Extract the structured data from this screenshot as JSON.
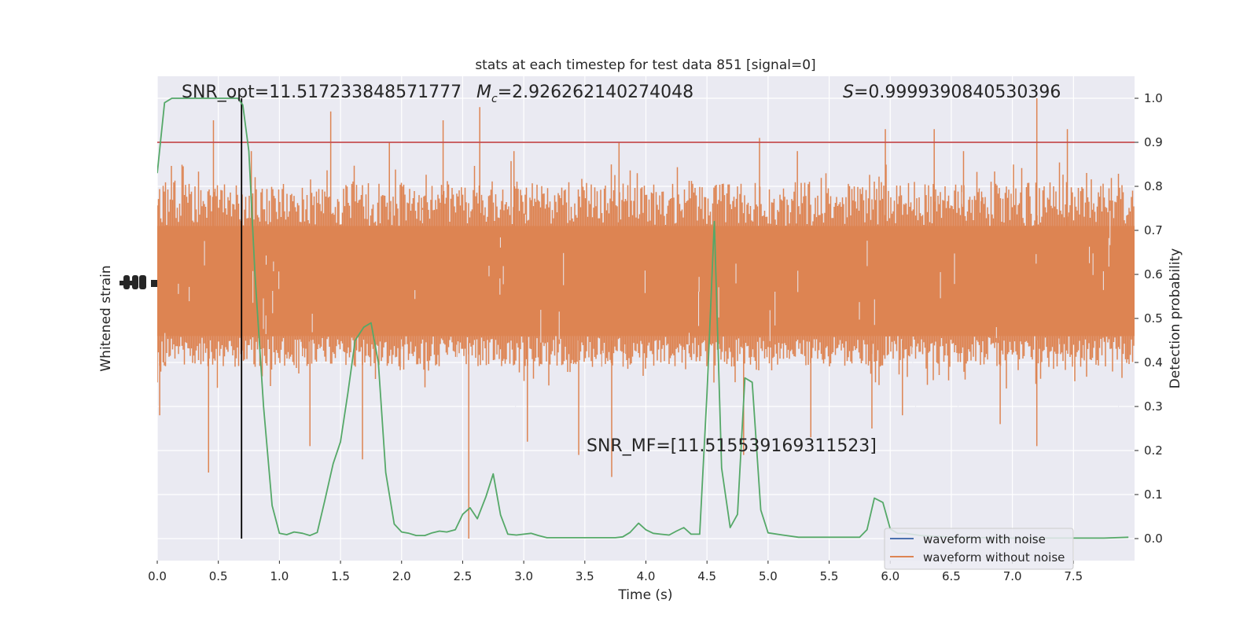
{
  "chart_data": {
    "type": "line",
    "title": "stats at each timestep for test data 851 [signal=0]",
    "xlabel": "Time (s)",
    "ylabel_left": "Whitened strain",
    "ylabel_right": "Detection probability",
    "xlim": [
      0,
      8
    ],
    "ylim_right": [
      -0.05,
      1.05
    ],
    "grid": true,
    "x_ticks": [
      "0.0",
      "0.5",
      "1.0",
      "1.5",
      "2.0",
      "2.5",
      "3.0",
      "3.5",
      "4.0",
      "4.5",
      "5.0",
      "5.5",
      "6.0",
      "6.5",
      "7.0",
      "7.5"
    ],
    "right_ticks": [
      "0.0",
      "0.1",
      "0.2",
      "0.3",
      "0.4",
      "0.5",
      "0.6",
      "0.7",
      "0.8",
      "0.9",
      "1.0"
    ],
    "annotations": {
      "snr_opt": "SNR_opt=11.517233848571777",
      "mc_symbol": "M",
      "mc_subscript": "c",
      "mc_value": "=2.926262140274048",
      "s_symbol": "S",
      "s_value": "=0.9999390840530396",
      "snr_mf": "SNR_MF=[11.515539169311523]"
    },
    "threshold": 0.9,
    "marker_time": 0.69,
    "noise_spikes": {
      "up": [
        [
          0.46,
          0.95
        ],
        [
          1.42,
          0.97
        ],
        [
          2.34,
          0.95
        ],
        [
          2.64,
          0.98
        ],
        [
          5.96,
          0.93
        ],
        [
          6.36,
          0.93
        ],
        [
          7.2,
          1.0
        ],
        [
          7.45,
          0.93
        ],
        [
          1.9,
          0.9
        ],
        [
          4.93,
          0.91
        ],
        [
          3.78,
          0.9
        ],
        [
          0.77,
          0.88
        ],
        [
          2.92,
          0.88
        ],
        [
          5.24,
          0.88
        ],
        [
          6.6,
          0.88
        ]
      ],
      "down": [
        [
          0.42,
          0.15
        ],
        [
          1.25,
          0.21
        ],
        [
          1.68,
          0.18
        ],
        [
          2.55,
          0.0
        ],
        [
          3.45,
          0.19
        ],
        [
          3.72,
          0.14
        ],
        [
          4.8,
          0.19
        ],
        [
          5.35,
          0.23
        ],
        [
          7.2,
          0.21
        ],
        [
          3.03,
          0.22
        ],
        [
          0.02,
          0.28
        ],
        [
          5.85,
          0.25
        ],
        [
          6.1,
          0.28
        ],
        [
          6.9,
          0.26
        ]
      ]
    },
    "series": [
      {
        "name": "waveform with noise",
        "color": "#4c72b0",
        "values": []
      },
      {
        "name": "waveform without noise",
        "color": "#dd8452",
        "values": []
      },
      {
        "color": "#55a868",
        "x": [
          0.0,
          0.06,
          0.12,
          0.2,
          0.3,
          0.4,
          0.5,
          0.6,
          0.66,
          0.7,
          0.75,
          0.8,
          0.87,
          0.94,
          1.0,
          1.06,
          1.12,
          1.19,
          1.25,
          1.31,
          1.37,
          1.44,
          1.5,
          1.56,
          1.62,
          1.69,
          1.75,
          1.81,
          1.87,
          1.94,
          2.0,
          2.06,
          2.12,
          2.19,
          2.25,
          2.31,
          2.37,
          2.44,
          2.5,
          2.56,
          2.62,
          2.69,
          2.75,
          2.81,
          2.87,
          2.94,
          3.0,
          3.06,
          3.12,
          3.19,
          3.25,
          3.5,
          3.75,
          3.81,
          3.87,
          3.94,
          4.0,
          4.06,
          4.12,
          4.19,
          4.25,
          4.31,
          4.37,
          4.44,
          4.5,
          4.56,
          4.62,
          4.69,
          4.75,
          4.81,
          4.87,
          4.94,
          5.0,
          5.12,
          5.25,
          5.5,
          5.75,
          5.81,
          5.87,
          5.94,
          6.0,
          6.06,
          6.12,
          6.25,
          6.5,
          6.75,
          7.0,
          7.25,
          7.5,
          7.75,
          7.95
        ],
        "y": [
          0.83,
          0.99,
          1.0,
          1.0,
          1.0,
          1.0,
          1.0,
          1.0,
          1.0,
          0.985,
          0.88,
          0.6,
          0.3,
          0.075,
          0.012,
          0.009,
          0.015,
          0.012,
          0.007,
          0.014,
          0.085,
          0.17,
          0.22,
          0.33,
          0.45,
          0.48,
          0.49,
          0.4,
          0.15,
          0.033,
          0.015,
          0.012,
          0.007,
          0.007,
          0.013,
          0.017,
          0.015,
          0.02,
          0.055,
          0.07,
          0.045,
          0.095,
          0.147,
          0.054,
          0.01,
          0.008,
          0.01,
          0.012,
          0.007,
          0.002,
          0.002,
          0.002,
          0.002,
          0.004,
          0.014,
          0.035,
          0.02,
          0.012,
          0.01,
          0.008,
          0.017,
          0.025,
          0.01,
          0.01,
          0.33,
          0.72,
          0.16,
          0.025,
          0.055,
          0.365,
          0.355,
          0.065,
          0.013,
          0.008,
          0.003,
          0.003,
          0.003,
          0.02,
          0.092,
          0.082,
          0.022,
          0.012,
          0.012,
          0.007,
          0.003,
          0.002,
          0.001,
          0.001,
          0.001,
          0.001,
          0.003
        ]
      }
    ]
  }
}
